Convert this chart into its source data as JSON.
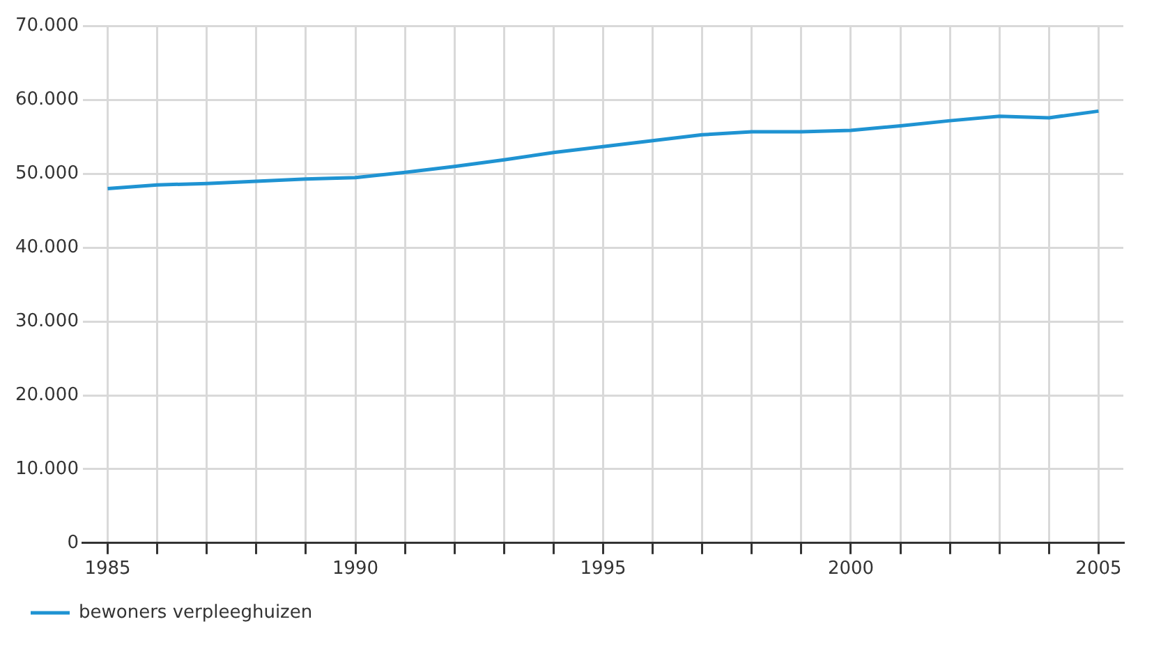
{
  "chart_data": {
    "type": "line",
    "x": [
      1985,
      1986,
      1987,
      1988,
      1989,
      1990,
      1991,
      1992,
      1993,
      1994,
      1995,
      1996,
      1997,
      1998,
      1999,
      2000,
      2001,
      2002,
      2003,
      2004,
      2005
    ],
    "series": [
      {
        "name": "bewoners verpleeghuizen",
        "color": "#1f93d2",
        "values": [
          48000,
          48500,
          48700,
          49000,
          49300,
          49500,
          50200,
          51000,
          51900,
          52900,
          53700,
          54500,
          55300,
          55700,
          55700,
          55900,
          56500,
          57200,
          57800,
          57600,
          58500
        ]
      }
    ],
    "xlim": [
      1984.5,
      2005.5
    ],
    "xticks": [
      {
        "value": 1985,
        "label": "1985"
      },
      {
        "value": 1986,
        "label": null
      },
      {
        "value": 1987,
        "label": null
      },
      {
        "value": 1988,
        "label": null
      },
      {
        "value": 1989,
        "label": null
      },
      {
        "value": 1990,
        "label": "1990"
      },
      {
        "value": 1991,
        "label": null
      },
      {
        "value": 1992,
        "label": null
      },
      {
        "value": 1993,
        "label": null
      },
      {
        "value": 1994,
        "label": null
      },
      {
        "value": 1995,
        "label": "1995"
      },
      {
        "value": 1996,
        "label": null
      },
      {
        "value": 1997,
        "label": null
      },
      {
        "value": 1998,
        "label": null
      },
      {
        "value": 1999,
        "label": null
      },
      {
        "value": 2000,
        "label": "2000"
      },
      {
        "value": 2001,
        "label": null
      },
      {
        "value": 2002,
        "label": null
      },
      {
        "value": 2003,
        "label": null
      },
      {
        "value": 2004,
        "label": null
      },
      {
        "value": 2005,
        "label": "2005"
      }
    ],
    "ylim": [
      0,
      70000
    ],
    "yticks": [
      {
        "value": 0,
        "label": "0"
      },
      {
        "value": 10000,
        "label": "10.000"
      },
      {
        "value": 20000,
        "label": "20.000"
      },
      {
        "value": 30000,
        "label": "30.000"
      },
      {
        "value": 40000,
        "label": "40.000"
      },
      {
        "value": 50000,
        "label": "50.000"
      },
      {
        "value": 60000,
        "label": "60.000"
      },
      {
        "value": 70000,
        "label": "70.000"
      }
    ],
    "grid": true,
    "legend": "bottom left",
    "marker": "none",
    "line_style": "solid"
  }
}
